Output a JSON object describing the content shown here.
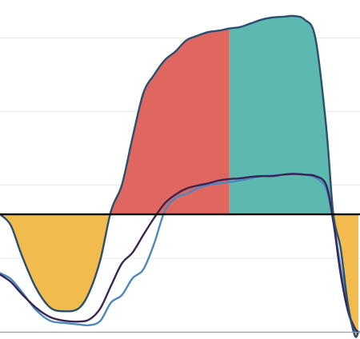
{
  "chart_data": {
    "type": "area",
    "title": "",
    "xlabel": "",
    "ylabel": "",
    "grid": true,
    "xlim": [
      0,
      100
    ],
    "ylim": [
      -160,
      270
    ],
    "baseline": 0,
    "gridlines": [
      -160,
      -60,
      40,
      140,
      240
    ],
    "colors": {
      "below_fill": "#F2BB4E",
      "mid_fill": "#E06660",
      "top_fill": "#5DB8B0",
      "envelope_line": "#2A4F6E",
      "dark_line": "#3A2456",
      "blue_line": "#4A88BD",
      "baseline": "#000000",
      "grid": "#E8E8E8"
    },
    "fill_split_x": 64,
    "series": [
      {
        "role": "envelope",
        "x": [
          0,
          3,
          6,
          10,
          14,
          18,
          22,
          25,
          28,
          31,
          34,
          37,
          40,
          43,
          46,
          49,
          52,
          55,
          58,
          61,
          64,
          67,
          70,
          73,
          76,
          79,
          82,
          85,
          88,
          91,
          93,
          95,
          97,
          99,
          100
        ],
        "y": [
          0,
          -15,
          -55,
          -100,
          -127,
          -132,
          -128,
          -105,
          -62,
          5,
          40,
          105,
          165,
          190,
          210,
          222,
          237,
          243,
          248,
          250,
          253,
          255,
          260,
          265,
          268,
          269,
          270,
          265,
          240,
          120,
          0,
          -45,
          -120,
          -165,
          -160
        ]
      },
      {
        "role": "dark",
        "x": [
          0,
          3,
          6,
          10,
          14,
          18,
          22,
          25,
          28,
          31,
          34,
          37,
          40,
          43,
          46,
          49,
          52,
          55,
          58,
          61,
          64,
          67,
          70,
          73,
          76,
          79,
          82,
          85,
          88,
          91,
          93,
          95,
          97,
          99,
          100
        ],
        "y": [
          -82,
          -92,
          -108,
          -127,
          -140,
          -145,
          -146,
          -143,
          -128,
          -97,
          -67,
          -52,
          -28,
          -5,
          15,
          27,
          35,
          39,
          42,
          46,
          48,
          49,
          51,
          52,
          52,
          54,
          55,
          54,
          52,
          40,
          -10,
          -80,
          -130,
          -155,
          -160
        ]
      },
      {
        "role": "blue",
        "x": [
          0,
          3,
          6,
          10,
          14,
          18,
          22,
          25,
          28,
          31,
          34,
          37,
          40,
          43,
          46,
          49,
          52,
          55,
          58,
          61,
          64,
          67,
          70,
          73,
          76,
          79,
          82,
          85,
          88,
          91,
          93,
          95,
          97,
          99,
          100
        ],
        "y": [
          -80,
          -88,
          -105,
          -130,
          -145,
          -148,
          -150,
          -151,
          -145,
          -120,
          -110,
          -87,
          -75,
          -40,
          5,
          22,
          28,
          35,
          40,
          42,
          44,
          46,
          49,
          52,
          53,
          54,
          55,
          54,
          50,
          35,
          -10,
          -70,
          -130,
          -158,
          -160
        ]
      }
    ]
  }
}
